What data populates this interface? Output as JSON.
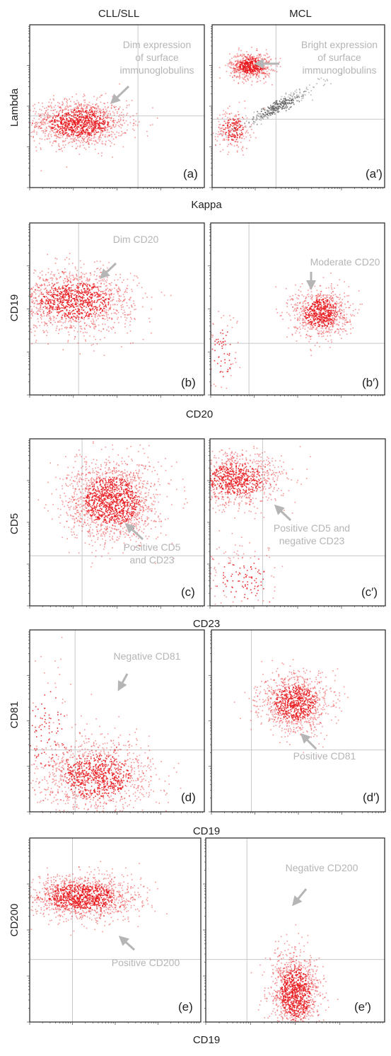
{
  "figure": {
    "column_headers": [
      "CLL/SLL",
      "MCL"
    ],
    "colors": {
      "dots": "#e8161b",
      "dots_gray": "#606060",
      "gate": "#c8c8c8",
      "annotation": "#b5b5b5",
      "frame": "#222222"
    }
  },
  "chart_data": [
    {
      "type": "scatter",
      "panel": "(a)",
      "xlabel": "Kappa",
      "ylabel": "Lambda",
      "log_axes": true,
      "quadrant_gate": {
        "x": 0.62,
        "y": 0.44
      },
      "annotation": {
        "lines": [
          "Dim expression",
          "of surface",
          "immunoglobulins"
        ],
        "arrow": "down-left"
      },
      "populations": [
        {
          "cx": 0.28,
          "cy": 0.4,
          "sx": 0.14,
          "sy": 0.07,
          "n": 1400,
          "color": "red"
        }
      ]
    },
    {
      "type": "scatter",
      "panel": "(a′)",
      "xlabel": "Kappa",
      "ylabel": "Lambda",
      "log_axes": true,
      "quadrant_gate": {
        "x": 0.37,
        "y": 0.42
      },
      "annotation": {
        "lines": [
          "Bright expression",
          "of surface",
          "immunoglobulins"
        ],
        "arrow": "left"
      },
      "populations": [
        {
          "cx": 0.22,
          "cy": 0.75,
          "sx": 0.06,
          "sy": 0.04,
          "n": 700,
          "color": "red"
        },
        {
          "cx": 0.12,
          "cy": 0.36,
          "sx": 0.05,
          "sy": 0.06,
          "n": 250,
          "color": "red"
        },
        {
          "cx": 0.38,
          "cy": 0.5,
          "sx": 0.12,
          "sy": 0.05,
          "n": 350,
          "color": "gray",
          "diagonal": true
        }
      ]
    },
    {
      "type": "scatter",
      "panel": "(b)",
      "xlabel": "CD20",
      "ylabel": "CD19",
      "log_axes": true,
      "quadrant_gate": {
        "x": 0.28,
        "y": 0.3
      },
      "annotation": {
        "lines": [
          "Dim CD20"
        ],
        "arrow": "down-left"
      },
      "populations": [
        {
          "cx": 0.25,
          "cy": 0.55,
          "sx": 0.17,
          "sy": 0.09,
          "n": 1500,
          "color": "red"
        }
      ]
    },
    {
      "type": "scatter",
      "panel": "(b′)",
      "xlabel": "CD20",
      "ylabel": "CD19",
      "log_axes": true,
      "quadrant_gate": {
        "x": 0.22,
        "y": 0.3
      },
      "annotation": {
        "lines": [
          "Moderate CD20"
        ],
        "arrow": "down"
      },
      "populations": [
        {
          "cx": 0.63,
          "cy": 0.48,
          "sx": 0.08,
          "sy": 0.07,
          "n": 900,
          "color": "red"
        },
        {
          "cx": 0.06,
          "cy": 0.25,
          "sx": 0.05,
          "sy": 0.14,
          "n": 90,
          "color": "red"
        }
      ]
    },
    {
      "type": "scatter",
      "panel": "(c)",
      "xlabel": "CD23",
      "ylabel": "CD5",
      "log_axes": true,
      "quadrant_gate": {
        "x": 0.3,
        "y": 0.3
      },
      "annotation": {
        "lines": [
          "Positive CD5",
          "and CD23"
        ],
        "arrow": "up-left"
      },
      "populations": [
        {
          "cx": 0.47,
          "cy": 0.63,
          "sx": 0.13,
          "sy": 0.12,
          "n": 1800,
          "color": "red"
        }
      ]
    },
    {
      "type": "scatter",
      "panel": "(c′)",
      "xlabel": "CD23",
      "ylabel": "CD5",
      "log_axes": true,
      "quadrant_gate": {
        "x": 0.3,
        "y": 0.3
      },
      "annotation": {
        "lines": [
          "Positive CD5 and",
          "negative CD23"
        ],
        "arrow": "up-left"
      },
      "populations": [
        {
          "cx": 0.15,
          "cy": 0.76,
          "sx": 0.13,
          "sy": 0.08,
          "n": 1000,
          "color": "red"
        },
        {
          "cx": 0.18,
          "cy": 0.16,
          "sx": 0.13,
          "sy": 0.1,
          "n": 180,
          "color": "red"
        }
      ]
    },
    {
      "type": "scatter",
      "panel": "(d)",
      "xlabel": "CD19",
      "ylabel": "CD81",
      "log_axes": true,
      "quadrant_gate": {
        "x": 0.26,
        "y": 0.34
      },
      "annotation": {
        "lines": [
          "Negative CD81"
        ],
        "arrow": "down"
      },
      "populations": [
        {
          "cx": 0.38,
          "cy": 0.2,
          "sx": 0.16,
          "sy": 0.1,
          "n": 1300,
          "color": "red"
        },
        {
          "cx": 0.1,
          "cy": 0.45,
          "sx": 0.09,
          "sy": 0.18,
          "n": 150,
          "color": "red"
        }
      ]
    },
    {
      "type": "scatter",
      "panel": "(d′)",
      "xlabel": "CD19",
      "ylabel": "CD81",
      "log_axes": true,
      "quadrant_gate": {
        "x": 0.23,
        "y": 0.34
      },
      "annotation": {
        "lines": [
          "Positive CD81"
        ],
        "arrow": "up-left"
      },
      "populations": [
        {
          "cx": 0.48,
          "cy": 0.6,
          "sx": 0.1,
          "sy": 0.08,
          "n": 1100,
          "color": "red"
        }
      ]
    },
    {
      "type": "scatter",
      "panel": "(e)",
      "xlabel": "CD19",
      "ylabel": "CD200",
      "log_axes": true,
      "quadrant_gate": {
        "x": 0.25,
        "y": 0.34
      },
      "annotation": {
        "lines": [
          "Positive CD200"
        ],
        "arrow": "up-left"
      },
      "populations": [
        {
          "cx": 0.3,
          "cy": 0.68,
          "sx": 0.16,
          "sy": 0.06,
          "n": 1500,
          "color": "red"
        }
      ]
    },
    {
      "type": "scatter",
      "panel": "(e′)",
      "xlabel": "CD19",
      "ylabel": "CD200",
      "log_axes": true,
      "quadrant_gate": {
        "x": 0.23,
        "y": 0.34
      },
      "annotation": {
        "lines": [
          "Negative CD200"
        ],
        "arrow": "down-left"
      },
      "populations": [
        {
          "cx": 0.5,
          "cy": 0.16,
          "sx": 0.07,
          "sy": 0.11,
          "n": 1300,
          "color": "red"
        }
      ]
    }
  ]
}
